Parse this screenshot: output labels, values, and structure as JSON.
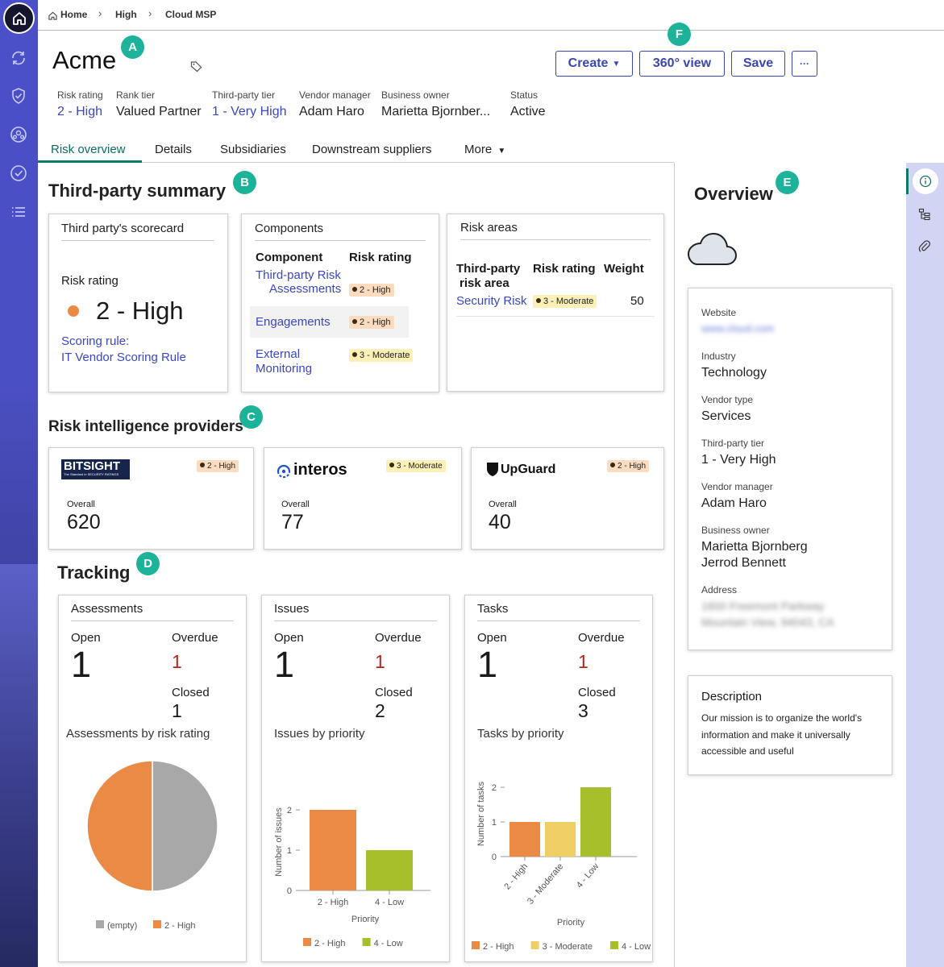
{
  "breadcrumb": {
    "home": "Home",
    "level1": "High",
    "level2": "Cloud MSP"
  },
  "vendor": {
    "name": "Acme"
  },
  "actions": {
    "create": "Create",
    "view360": "360° view",
    "save": "Save",
    "more": "···"
  },
  "meta": {
    "risk_rating_label": "Risk rating",
    "risk_rating": "2 - High",
    "rank_tier_label": "Rank tier",
    "rank_tier": "Valued Partner",
    "third_party_tier_label": "Third-party tier",
    "third_party_tier": "1 - Very High",
    "vendor_manager_label": "Vendor manager",
    "vendor_manager": "Adam Haro",
    "business_owner_label": "Business owner",
    "business_owner": "Marietta Bjornber...",
    "status_label": "Status",
    "status": "Active"
  },
  "tabs": [
    "Risk overview",
    "Details",
    "Subsidiaries",
    "Downstream suppliers",
    "More"
  ],
  "annotations": {
    "a": "A",
    "b": "B",
    "c": "C",
    "d": "D",
    "e": "E",
    "f": "F"
  },
  "summary": {
    "title": "Third-party summary",
    "scorecard": {
      "title": "Third party's scorecard",
      "label": "Risk rating",
      "value": "2 - High",
      "rule_label": "Scoring rule:",
      "rule": "IT Vendor Scoring Rule"
    },
    "components": {
      "title": "Components",
      "col1": "Component",
      "col2": "Risk rating",
      "rows": [
        {
          "name_line1": "Third-party Risk",
          "name_line2": "Assessments",
          "rating": "2 - High"
        },
        {
          "name_line1": "Engagements",
          "name_line2": "",
          "rating": "2 - High"
        },
        {
          "name_line1": "External",
          "name_line2": "Monitoring",
          "rating": "3 - Moderate"
        }
      ]
    },
    "risk_areas": {
      "title": "Risk areas",
      "col1_line1": "Third-party",
      "col1_line2": "risk area",
      "col2": "Risk rating",
      "col3": "Weight",
      "rows": [
        {
          "name": "Security Risk",
          "rating": "3 - Moderate",
          "weight": "50"
        }
      ]
    }
  },
  "providers": {
    "title": "Risk intelligence providers",
    "items": [
      {
        "logo": "BITSIGHT",
        "logo_sub": "The Standard in SECURITY RATINGS",
        "rating": "2 - High",
        "label": "Overall",
        "value": "620"
      },
      {
        "logo": "interos",
        "rating": "3 - Moderate",
        "label": "Overall",
        "value": "77"
      },
      {
        "logo": "UpGuard",
        "rating": "2 - High",
        "label": "Overall",
        "value": "40"
      }
    ]
  },
  "tracking": {
    "title": "Tracking",
    "assessments": {
      "title": "Assessments",
      "open_label": "Open",
      "open": "1",
      "overdue_label": "Overdue",
      "overdue": "1",
      "closed_label": "Closed",
      "closed": "1",
      "chart_title": "Assessments by risk rating"
    },
    "issues": {
      "title": "Issues",
      "open_label": "Open",
      "open": "1",
      "overdue_label": "Overdue",
      "overdue": "1",
      "closed_label": "Closed",
      "closed": "2",
      "chart_title": "Issues by priority"
    },
    "tasks": {
      "title": "Tasks",
      "open_label": "Open",
      "open": "1",
      "overdue_label": "Overdue",
      "overdue": "1",
      "closed_label": "Closed",
      "closed": "3",
      "chart_title": "Tasks by priority"
    }
  },
  "chart_data": [
    {
      "type": "pie",
      "title": "Assessments by risk rating",
      "categories": [
        "(empty)",
        "2 - High"
      ],
      "values": [
        1,
        1
      ],
      "colors": [
        "#a8a8a8",
        "#ea8a45"
      ],
      "legend": "bottom"
    },
    {
      "type": "bar",
      "title": "Issues by priority",
      "xlabel": "Priority",
      "ylabel": "Number of issues",
      "categories": [
        "2 - High",
        "4 - Low"
      ],
      "values": [
        2,
        1
      ],
      "colors": [
        "#ea8a45",
        "#a7bf2a"
      ],
      "ylim": [
        0,
        2
      ],
      "yticks": [
        "0",
        "1",
        "2"
      ],
      "legend": "bottom"
    },
    {
      "type": "bar",
      "title": "Tasks by priority",
      "xlabel": "Priority",
      "ylabel": "Number of tasks",
      "categories": [
        "2 - High",
        "3 - Moderate",
        "4 - Low"
      ],
      "values": [
        1,
        1,
        2
      ],
      "colors": [
        "#ea8a45",
        "#efcf63",
        "#a7bf2a"
      ],
      "ylim": [
        0,
        2
      ],
      "yticks": [
        "0",
        "1",
        "2"
      ],
      "legend": "bottom"
    }
  ],
  "overview": {
    "title": "Overview",
    "website_label": "Website",
    "website": "www.cloud.com",
    "industry_label": "Industry",
    "industry": "Technology",
    "vendor_type_label": "Vendor type",
    "vendor_type": "Services",
    "tier_label": "Third-party tier",
    "tier": "1 - Very High",
    "manager_label": "Vendor manager",
    "manager": "Adam Haro",
    "owner_label": "Business owner",
    "owner1": "Marietta Bjornberg",
    "owner2": "Jerrod Bennett",
    "address_label": "Address",
    "address1": "1600 Freemont Parkway",
    "address2": "Mountain View, 94043, CA",
    "description_title": "Description",
    "description": [
      "Our mission is to organize the world's",
      "information and make it universally",
      "accessible and useful"
    ]
  }
}
